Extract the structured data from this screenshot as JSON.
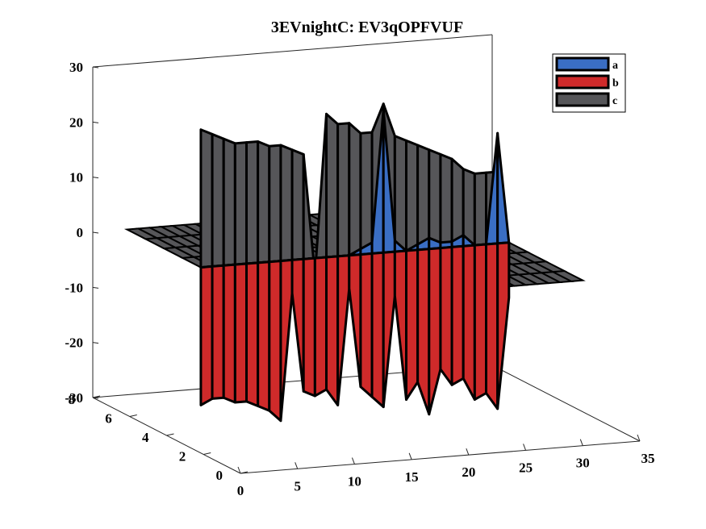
{
  "chart_data": {
    "type": "3d-bar-surface",
    "title": "3EVnightC: EV3qOPFVUF",
    "xlabel": "",
    "ylabel": "",
    "zlabel": "",
    "xlim": [
      0,
      35
    ],
    "ylim": [
      0,
      8
    ],
    "zlim": [
      -30,
      30
    ],
    "x_ticks": [
      "0",
      "5",
      "10",
      "15",
      "20",
      "25",
      "30",
      "35"
    ],
    "y_ticks": [
      "0",
      "2",
      "4",
      "6",
      "8"
    ],
    "z_ticks": [
      "-30",
      "-20",
      "-10",
      "0",
      "10",
      "20",
      "30"
    ],
    "grid": false,
    "legend_position": "top-right",
    "x": [
      3,
      4,
      5,
      6,
      7,
      8,
      9,
      10,
      11,
      12,
      13,
      14,
      15,
      16,
      17,
      18,
      19,
      20,
      21,
      22,
      23,
      24,
      25,
      26,
      27,
      28,
      29,
      30
    ],
    "series": [
      {
        "name": "a",
        "color": "#3a6ec4",
        "values": [
          0,
          0,
          0,
          0,
          0,
          0,
          0,
          0,
          0,
          0,
          0,
          0,
          0,
          0,
          1,
          2,
          26,
          2,
          0,
          1,
          2,
          1,
          1,
          2,
          0,
          0,
          20,
          0
        ]
      },
      {
        "name": "b",
        "color": "#cf2a2a",
        "values": [
          -25,
          -24,
          -24,
          -25,
          -25,
          -26,
          -27,
          -29,
          -6,
          -24,
          -25,
          -24,
          -27,
          -6,
          -24,
          -26,
          -28,
          -8,
          -27,
          -24,
          -30,
          -22,
          -25,
          -24,
          -28,
          -27,
          -30,
          -10
        ]
      },
      {
        "name": "c",
        "color": "#565659",
        "values": [
          25,
          24,
          23,
          22,
          22,
          22,
          21,
          21,
          20,
          19,
          -3,
          26,
          24,
          24,
          22,
          22,
          27,
          21,
          20,
          19,
          18,
          17,
          16,
          14,
          13,
          13,
          13,
          -8
        ]
      }
    ]
  }
}
